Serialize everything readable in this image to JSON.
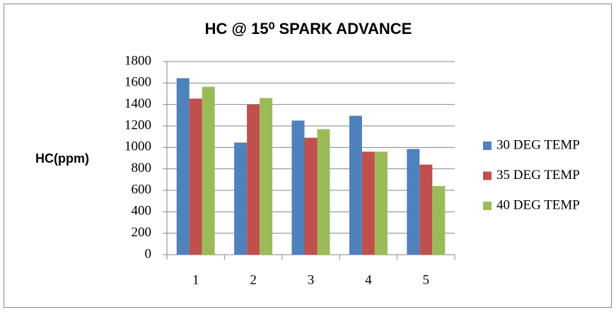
{
  "chart_data": {
    "type": "bar",
    "title": "HC @ 15⁰ SPARK ADVANCE",
    "y_label": "HC(ppm)",
    "categories": [
      "1",
      "2",
      "3",
      "4",
      "5"
    ],
    "series": [
      {
        "name": "30 DEG TEMP",
        "color": "#4f81bd",
        "values": [
          1645,
          1045,
          1250,
          1295,
          985
        ]
      },
      {
        "name": "35 DEG TEMP",
        "color": "#c0504d",
        "values": [
          1455,
          1400,
          1090,
          960,
          840
        ]
      },
      {
        "name": "40 DEG TEMP",
        "color": "#9bbb59",
        "values": [
          1565,
          1460,
          1170,
          960,
          640
        ]
      }
    ],
    "ylim": [
      0,
      1800
    ],
    "yticks": [
      0,
      200,
      400,
      600,
      800,
      1000,
      1200,
      1400,
      1600,
      1800
    ],
    "grid": true,
    "legend": "right"
  }
}
